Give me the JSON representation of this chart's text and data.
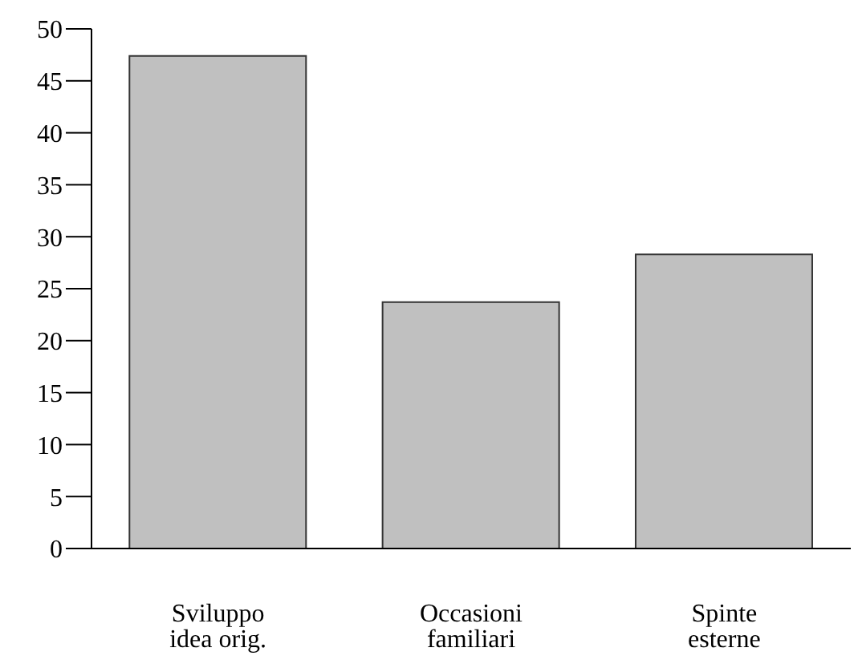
{
  "chart_data": {
    "type": "bar",
    "categories": [
      "Sviluppo idea orig.",
      "Occasioni familiari",
      "Spinte esterne"
    ],
    "values": [
      47.4,
      23.7,
      28.3
    ],
    "color": "#c0c0c0",
    "ylim": [
      0,
      50
    ],
    "yticks": [
      0,
      5,
      10,
      15,
      20,
      25,
      30,
      35,
      40,
      45,
      50
    ]
  }
}
